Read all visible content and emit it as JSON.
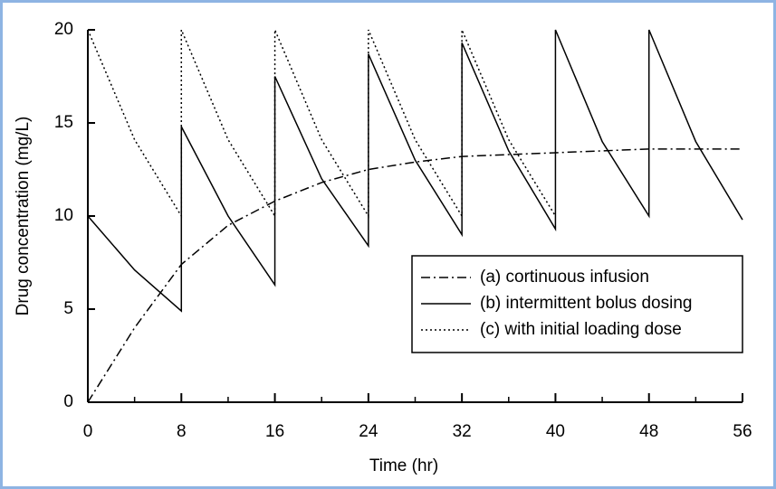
{
  "chart_data": {
    "type": "line",
    "xlabel": "Time (hr)",
    "ylabel": "Drug concentration (mg/L)",
    "xlim": [
      0,
      56
    ],
    "xticks": [
      0,
      8,
      16,
      24,
      32,
      40,
      48,
      56
    ],
    "xminorticks": [
      4,
      12,
      20,
      28,
      36,
      44,
      52
    ],
    "ylim": [
      0,
      20
    ],
    "yticks": [
      0,
      5,
      10,
      15,
      20
    ],
    "legend": "lower right",
    "series": [
      {
        "name": "(a) cortinuous infusion",
        "color": "#000000",
        "style": "dashdot",
        "x": [
          0,
          4,
          8,
          12,
          16,
          20,
          24,
          28,
          32,
          36,
          40,
          44,
          48,
          52,
          56
        ],
        "values": [
          0,
          4,
          7.4,
          9.5,
          10.8,
          11.8,
          12.5,
          12.9,
          13.2,
          13.3,
          13.4,
          13.5,
          13.6,
          13.6,
          13.6
        ]
      },
      {
        "name": "(b) intermittent bolus dosing",
        "color": "#000000",
        "style": "solid",
        "x": [
          0,
          4,
          8,
          8,
          12,
          16,
          16,
          20,
          24,
          24,
          28,
          32,
          32,
          36,
          40,
          40,
          44,
          48,
          48,
          52,
          56
        ],
        "values": [
          10,
          7.1,
          4.9,
          14.8,
          10,
          6.3,
          17.5,
          12,
          8.4,
          18.7,
          13,
          9,
          19.3,
          13.5,
          9.3,
          20,
          14,
          10,
          20,
          14,
          9.8
        ]
      },
      {
        "name": "(c) with initial loading dose",
        "color": "#000000",
        "style": "dotted",
        "x": [
          0,
          4,
          8,
          8,
          12,
          16,
          16,
          20,
          24,
          24,
          28,
          32,
          32,
          36,
          40
        ],
        "values": [
          20,
          14.1,
          10,
          20,
          14.1,
          10,
          20,
          14.1,
          10,
          20,
          14.1,
          10,
          20,
          14.1,
          10
        ]
      }
    ]
  }
}
